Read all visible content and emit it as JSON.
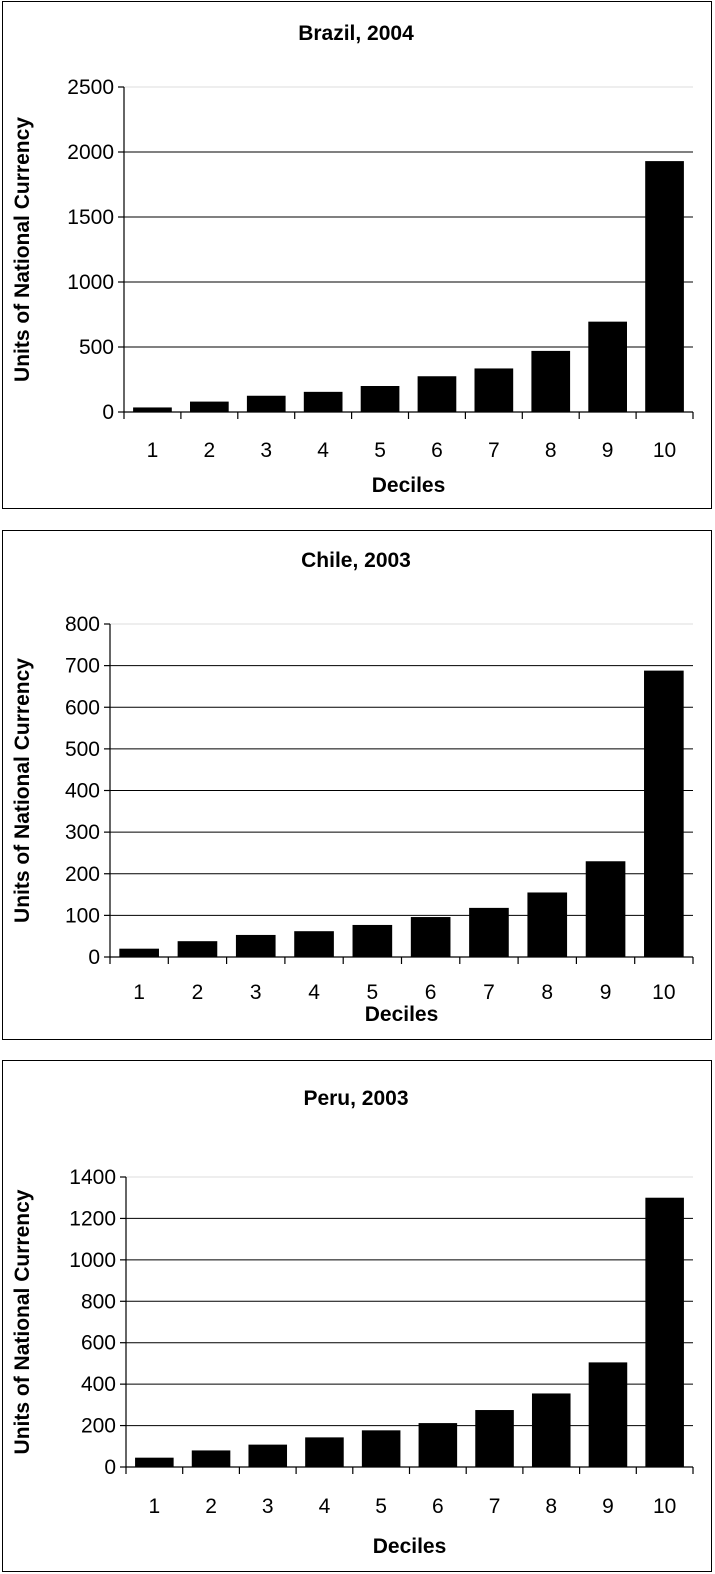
{
  "chart_data": [
    {
      "type": "bar",
      "title": "Brazil, 2004",
      "xlabel": "Deciles",
      "ylabel": "Units of National Currency",
      "categories": [
        "1",
        "2",
        "3",
        "4",
        "5",
        "6",
        "7",
        "8",
        "9",
        "10"
      ],
      "values": [
        35,
        80,
        125,
        155,
        200,
        275,
        335,
        470,
        695,
        1930
      ],
      "ylim": [
        0,
        2500
      ],
      "yticks": [
        0,
        500,
        1000,
        1500,
        2000,
        2500
      ],
      "ytick_labels": [
        "0",
        "500",
        "1000",
        "1500",
        "2000",
        "2500"
      ],
      "grid": true,
      "bar_color": "#000000"
    },
    {
      "type": "bar",
      "title": "Chile, 2003",
      "xlabel": "Deciles",
      "ylabel": "Units of National Currency",
      "categories": [
        "1",
        "2",
        "3",
        "4",
        "5",
        "6",
        "7",
        "8",
        "9",
        "10"
      ],
      "values": [
        20,
        38,
        53,
        62,
        77,
        96,
        118,
        155,
        230,
        688
      ],
      "ylim": [
        0,
        800
      ],
      "yticks": [
        0,
        100,
        200,
        300,
        400,
        500,
        600,
        700,
        800
      ],
      "ytick_labels": [
        "0",
        "100",
        "200",
        "300",
        "400",
        "500",
        "600",
        "700",
        "800"
      ],
      "grid": true,
      "bar_color": "#000000"
    },
    {
      "type": "bar",
      "title": "Peru, 2003",
      "xlabel": "Deciles",
      "ylabel": "Units of National Currency",
      "categories": [
        "1",
        "2",
        "3",
        "4",
        "5",
        "6",
        "7",
        "8",
        "9",
        "10"
      ],
      "values": [
        45,
        80,
        108,
        143,
        177,
        212,
        275,
        355,
        505,
        1300
      ],
      "ylim": [
        0,
        1400
      ],
      "yticks": [
        0,
        200,
        400,
        600,
        800,
        1000,
        1200,
        1400
      ],
      "ytick_labels": [
        "0",
        "200",
        "400",
        "600",
        "800",
        "1000",
        "1200",
        "1400"
      ],
      "grid": true,
      "bar_color": "#000000"
    }
  ]
}
